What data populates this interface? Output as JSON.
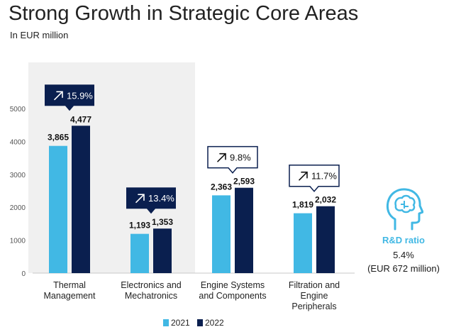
{
  "header": {
    "title": "Strong Growth in Strategic Core Areas",
    "subtitle": "In EUR million"
  },
  "colors": {
    "series2021": "#41b8e4",
    "series2022": "#0a1f4f",
    "highlight_band": "#f0f0f0",
    "growth_box_dark": "#0a1f4f",
    "axis_text": "#555555"
  },
  "rd": {
    "label": "R&D ratio",
    "value": "5.4%",
    "sub": "(EUR 672 million)",
    "icon": "head-brain-icon"
  },
  "chart_data": {
    "type": "bar",
    "title": "Strong Growth in Strategic Core Areas",
    "ylabel": "EUR million",
    "ylim": [
      0,
      5000
    ],
    "yticks": [
      0,
      1000,
      2000,
      3000,
      4000,
      5000
    ],
    "ytick_labels": [
      "0",
      "1000",
      "2000",
      "3000",
      "4000",
      "5000"
    ],
    "categories": [
      [
        "Thermal",
        "Management"
      ],
      [
        "Electronics and",
        "Mechatronics"
      ],
      [
        "Engine Systems",
        "and Components"
      ],
      [
        "Filtration and",
        "Engine",
        "Peripherals"
      ]
    ],
    "series": [
      {
        "name": "2021",
        "values": [
          3865,
          1193,
          2363,
          1819
        ],
        "labels": [
          "3,865",
          "1,193",
          "2,363",
          "1,819"
        ]
      },
      {
        "name": "2022",
        "values": [
          4477,
          1353,
          2593,
          2032
        ],
        "labels": [
          "4,477",
          "1,353",
          "2,593",
          "2,032"
        ]
      }
    ],
    "growth": [
      {
        "label": "15.9%",
        "style": "dark"
      },
      {
        "label": "13.4%",
        "style": "dark"
      },
      {
        "label": "9.8%",
        "style": "outline"
      },
      {
        "label": "11.7%",
        "style": "outline"
      }
    ],
    "legend": [
      "2021",
      "2022"
    ],
    "legend_position": "bottom",
    "highlighted_categories": [
      0,
      1
    ],
    "grid": false
  }
}
